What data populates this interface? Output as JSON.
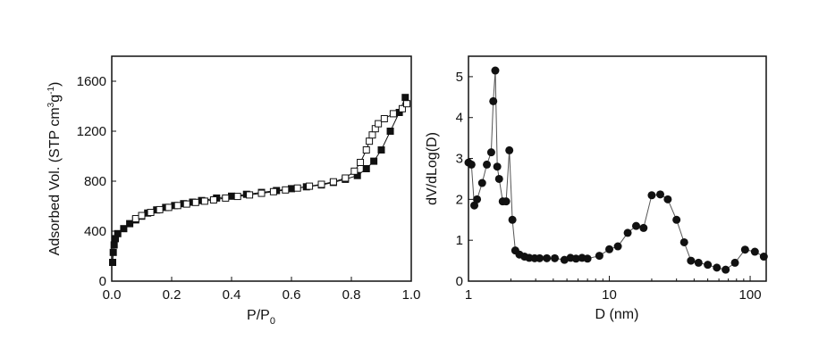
{
  "chart_data": [
    {
      "type": "scatter",
      "xlabel_main": "P/P",
      "xlabel_sub": "0",
      "ylabel_main": "Adsorbed Vol. (STP cm",
      "ylabel_sup1": "3",
      "ylabel_mid": "g",
      "ylabel_sup2": "-1",
      "ylabel_end": ")",
      "xlim": [
        0.0,
        1.0
      ],
      "ylim": [
        0,
        1800
      ],
      "xticks": [
        0.0,
        0.2,
        0.4,
        0.6,
        0.8,
        1.0
      ],
      "xtick_labels": [
        "0.0",
        "0.2",
        "0.4",
        "0.6",
        "0.8",
        "1.0"
      ],
      "yticks": [
        0,
        400,
        800,
        1200,
        1600
      ],
      "ytick_labels": [
        "0",
        "400",
        "800",
        "1200",
        "1600"
      ],
      "series": [
        {
          "marker": "filled-square",
          "x": [
            0.003,
            0.005,
            0.008,
            0.012,
            0.02,
            0.04,
            0.06,
            0.08,
            0.1,
            0.12,
            0.15,
            0.18,
            0.21,
            0.24,
            0.27,
            0.3,
            0.35,
            0.4,
            0.45,
            0.5,
            0.55,
            0.6,
            0.65,
            0.7,
            0.74,
            0.78,
            0.82,
            0.85,
            0.875,
            0.9,
            0.93,
            0.96,
            0.98
          ],
          "y": [
            150,
            230,
            290,
            340,
            380,
            420,
            460,
            490,
            520,
            545,
            570,
            590,
            605,
            620,
            632,
            645,
            665,
            680,
            695,
            710,
            725,
            740,
            755,
            770,
            790,
            815,
            845,
            900,
            960,
            1050,
            1200,
            1350,
            1470
          ]
        },
        {
          "marker": "open-square",
          "x": [
            0.08,
            0.1,
            0.13,
            0.16,
            0.19,
            0.22,
            0.25,
            0.28,
            0.31,
            0.34,
            0.38,
            0.42,
            0.46,
            0.5,
            0.54,
            0.58,
            0.62,
            0.66,
            0.7,
            0.74,
            0.78,
            0.81,
            0.83,
            0.85,
            0.86,
            0.87,
            0.88,
            0.89,
            0.91,
            0.94,
            0.97,
            0.985
          ],
          "y": [
            500,
            525,
            550,
            572,
            590,
            605,
            617,
            630,
            640,
            650,
            665,
            678,
            690,
            703,
            716,
            730,
            745,
            760,
            775,
            795,
            825,
            880,
            950,
            1050,
            1120,
            1170,
            1220,
            1260,
            1300,
            1340,
            1380,
            1420
          ]
        }
      ]
    },
    {
      "type": "line",
      "xscale": "log",
      "xlabel": "D (nm)",
      "ylabel": "dV/dLog(D)",
      "xlim": [
        1,
        130
      ],
      "ylim": [
        0,
        5.5
      ],
      "xticks": [
        1,
        10,
        100
      ],
      "xtick_labels": [
        "1",
        "10",
        "100"
      ],
      "yticks": [
        0,
        1,
        2,
        3,
        4,
        5
      ],
      "ytick_labels": [
        "0",
        "1",
        "2",
        "3",
        "4",
        "5"
      ],
      "series": [
        {
          "marker": "filled-circle",
          "x": [
            1.0,
            1.05,
            1.1,
            1.15,
            1.25,
            1.35,
            1.45,
            1.5,
            1.55,
            1.6,
            1.65,
            1.75,
            1.85,
            1.95,
            2.05,
            2.15,
            2.3,
            2.5,
            2.7,
            2.95,
            3.2,
            3.6,
            4.1,
            4.8,
            5.3,
            5.8,
            6.4,
            7.0,
            8.5,
            10.0,
            11.5,
            13.5,
            15.5,
            17.5,
            20.0,
            23.0,
            26.0,
            30.0,
            34.0,
            38.0,
            43.0,
            50.0,
            58.0,
            67.0,
            78.0,
            92.0,
            108.0,
            125.0
          ],
          "y": [
            2.9,
            2.85,
            1.85,
            2.0,
            2.4,
            2.85,
            3.15,
            4.4,
            5.15,
            2.8,
            2.5,
            1.95,
            1.95,
            3.2,
            1.5,
            0.75,
            0.65,
            0.6,
            0.57,
            0.56,
            0.56,
            0.56,
            0.56,
            0.52,
            0.57,
            0.55,
            0.57,
            0.55,
            0.62,
            0.78,
            0.85,
            1.18,
            1.35,
            1.3,
            2.1,
            2.12,
            2.0,
            1.5,
            0.95,
            0.5,
            0.45,
            0.4,
            0.33,
            0.28,
            0.45,
            0.77,
            0.72,
            0.6
          ]
        }
      ]
    }
  ]
}
